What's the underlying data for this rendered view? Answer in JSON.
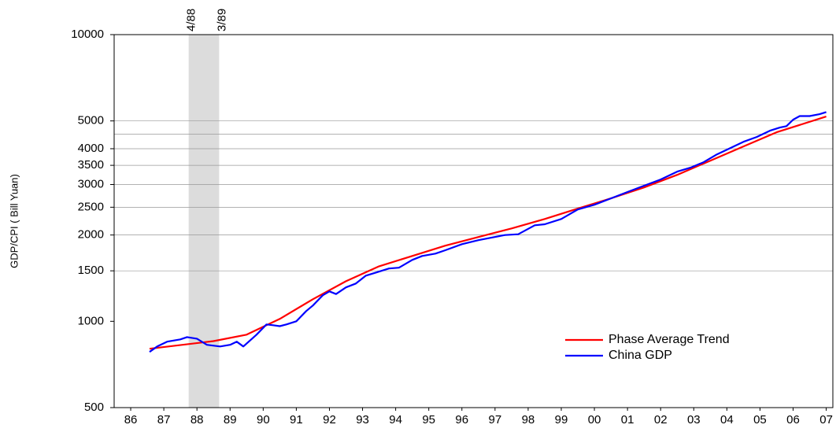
{
  "chart_data": {
    "type": "line",
    "ylabel": "GDP/CPI ( Bill Yuan)",
    "log_y": true,
    "ylim": [
      500,
      10000
    ],
    "yticks": [
      500,
      1000,
      1500,
      2000,
      2500,
      3000,
      3500,
      4000,
      5000,
      10000
    ],
    "ygrid": [
      1500,
      2000,
      2500,
      3000,
      3500,
      4000,
      4500,
      5000
    ],
    "xlim": [
      1986,
      2007.7
    ],
    "xticks": [
      {
        "value": 1986.5,
        "label": "86"
      },
      {
        "value": 1987.5,
        "label": "87"
      },
      {
        "value": 1988.5,
        "label": "88"
      },
      {
        "value": 1989.5,
        "label": "89"
      },
      {
        "value": 1990.5,
        "label": "90"
      },
      {
        "value": 1991.5,
        "label": "91"
      },
      {
        "value": 1992.5,
        "label": "92"
      },
      {
        "value": 1993.5,
        "label": "93"
      },
      {
        "value": 1994.5,
        "label": "94"
      },
      {
        "value": 1995.5,
        "label": "95"
      },
      {
        "value": 1996.5,
        "label": "96"
      },
      {
        "value": 1997.5,
        "label": "97"
      },
      {
        "value": 1998.5,
        "label": "98"
      },
      {
        "value": 1999.5,
        "label": "99"
      },
      {
        "value": 2000.5,
        "label": "00"
      },
      {
        "value": 2001.5,
        "label": "01"
      },
      {
        "value": 2002.5,
        "label": "02"
      },
      {
        "value": 2003.5,
        "label": "03"
      },
      {
        "value": 2004.5,
        "label": "04"
      },
      {
        "value": 2005.5,
        "label": "05"
      },
      {
        "value": 2006.5,
        "label": "06"
      },
      {
        "value": 2007.5,
        "label": "07"
      }
    ],
    "shaded_region": {
      "start": 1988.25,
      "end": 1989.17,
      "labels": [
        "4/88",
        "3/89"
      ],
      "color": "#dcdcdc"
    },
    "legend": "lower right",
    "series": [
      {
        "name": "Phase Average Trend",
        "color": "#ff0000",
        "x": [
          1987.07,
          1989,
          1990,
          1991,
          1992,
          1993,
          1994,
          1995,
          1996,
          1997,
          1998,
          1999,
          2000,
          2001,
          2002,
          2003,
          2004,
          2005,
          2006,
          2007.5
        ],
        "values": [
          802,
          853,
          898,
          1019,
          1194,
          1380,
          1556,
          1690,
          1836,
          1968,
          2109,
          2275,
          2472,
          2685,
          2931,
          3243,
          3633,
          4074,
          4563,
          5179
        ]
      },
      {
        "name": "China GDP",
        "color": "#0000ff",
        "x": [
          1987.07,
          1987.3,
          1987.6,
          1988.0,
          1988.2,
          1988.5,
          1988.8,
          1989.2,
          1989.5,
          1989.7,
          1989.9,
          1990.3,
          1990.6,
          1990.8,
          1991.0,
          1991.2,
          1991.5,
          1991.8,
          1992.0,
          1992.3,
          1992.5,
          1992.7,
          1993.0,
          1993.3,
          1993.6,
          1993.9,
          1994.3,
          1994.6,
          1995.0,
          1995.3,
          1995.7,
          1996.0,
          1996.5,
          1997.0,
          1997.4,
          1997.8,
          1998.2,
          1998.7,
          1999.0,
          1999.5,
          2000.0,
          2000.5,
          2001.0,
          2001.5,
          2002.0,
          2002.5,
          2003.0,
          2003.4,
          2003.8,
          2004.2,
          2004.6,
          2005.0,
          2005.4,
          2005.8,
          2006.1,
          2006.3,
          2006.5,
          2006.7,
          2007.0,
          2007.3,
          2007.5
        ],
        "values": [
          782,
          817,
          849,
          865,
          881,
          870,
          828,
          817,
          828,
          849,
          817,
          898,
          975,
          969,
          962,
          975,
          1000,
          1086,
          1135,
          1233,
          1272,
          1245,
          1313,
          1355,
          1443,
          1479,
          1528,
          1538,
          1637,
          1690,
          1722,
          1770,
          1858,
          1919,
          1960,
          2000,
          2012,
          2163,
          2180,
          2275,
          2455,
          2550,
          2685,
          2825,
          2972,
          3124,
          3327,
          3435,
          3589,
          3821,
          4019,
          4229,
          4394,
          4621,
          4742,
          4795,
          5049,
          5200,
          5200,
          5280,
          5370
        ]
      }
    ]
  }
}
